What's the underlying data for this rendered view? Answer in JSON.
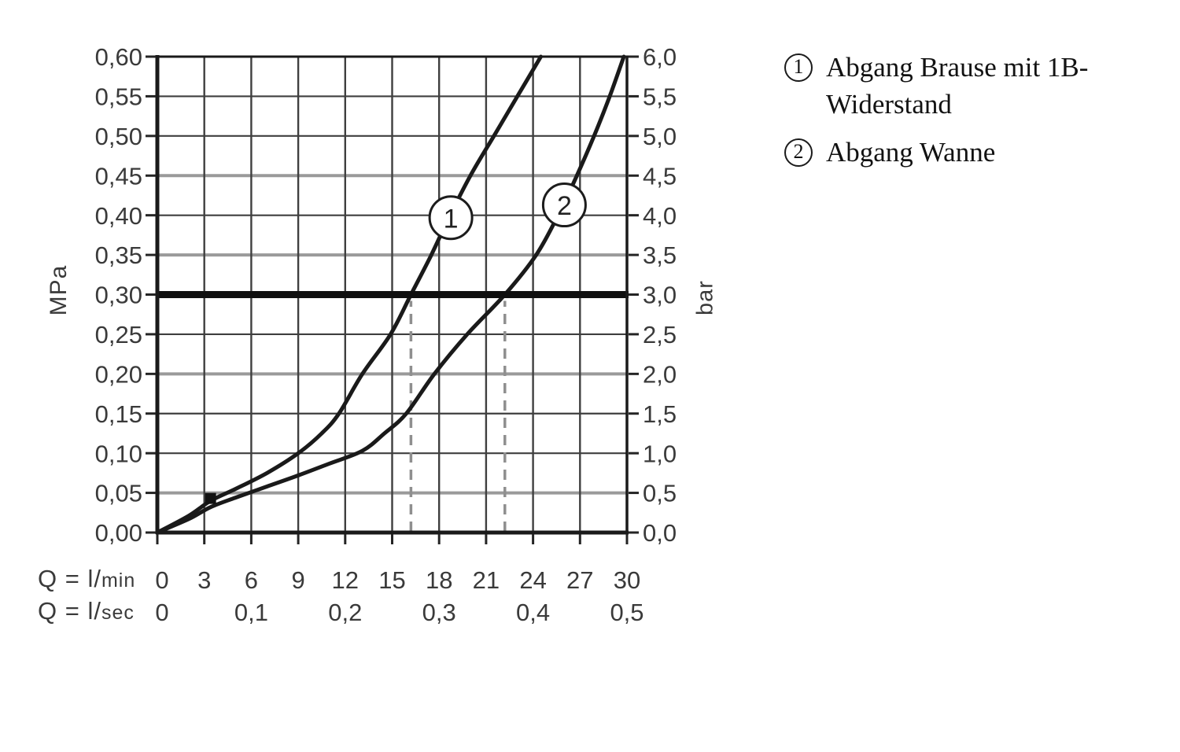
{
  "chart_data": {
    "type": "line",
    "title": "",
    "x": {
      "label_lmin_prefix": "Q = l/",
      "label_lmin_unit": "min",
      "label_lsec_prefix": "Q = l/",
      "label_lsec_unit": "sec",
      "range_lmin": [
        0,
        30
      ],
      "ticks_lmin": [
        "0",
        "3",
        "6",
        "9",
        "12",
        "15",
        "18",
        "21",
        "24",
        "27",
        "30"
      ],
      "ticks_lsec": [
        {
          "label": "0",
          "lmin": 0
        },
        {
          "label": "0,1",
          "lmin": 6
        },
        {
          "label": "0,2",
          "lmin": 12
        },
        {
          "label": "0,3",
          "lmin": 18
        },
        {
          "label": "0,4",
          "lmin": 24
        },
        {
          "label": "0,5",
          "lmin": 30
        }
      ]
    },
    "y_left": {
      "unit": "MPa",
      "range": [
        0,
        0.6
      ],
      "ticks": [
        "0,00",
        "0,05",
        "0,10",
        "0,15",
        "0,20",
        "0,25",
        "0,30",
        "0,35",
        "0,40",
        "0,45",
        "0,50",
        "0,55",
        "0,60"
      ]
    },
    "y_right": {
      "unit": "bar",
      "range": [
        0,
        6
      ],
      "ticks": [
        "0,0",
        "0,5",
        "1,0",
        "1,5",
        "2,0",
        "2,5",
        "3,0",
        "3,5",
        "4,0",
        "4,5",
        "5,0",
        "5,5",
        "6,0"
      ]
    },
    "series": [
      {
        "id": "1",
        "name": "Abgang Brause mit 1B-Widerstand",
        "points_lmin_mpa": [
          [
            0,
            0
          ],
          [
            2,
            0.021
          ],
          [
            3.4,
            0.04
          ],
          [
            5,
            0.055
          ],
          [
            7,
            0.075
          ],
          [
            9,
            0.1
          ],
          [
            10.5,
            0.125
          ],
          [
            11.6,
            0.15
          ],
          [
            13.1,
            0.2
          ],
          [
            14.9,
            0.25
          ],
          [
            16.2,
            0.3
          ],
          [
            17.5,
            0.35
          ],
          [
            18.7,
            0.4
          ],
          [
            20,
            0.45
          ],
          [
            21.5,
            0.5
          ],
          [
            23,
            0.55
          ],
          [
            24.5,
            0.6
          ]
        ],
        "badge_lmin_mpa": [
          18.75,
          0.397
        ]
      },
      {
        "id": "2",
        "name": "Abgang Wanne",
        "points_lmin_mpa": [
          [
            0,
            0
          ],
          [
            2,
            0.017
          ],
          [
            3.4,
            0.032
          ],
          [
            5,
            0.044
          ],
          [
            7,
            0.058
          ],
          [
            9,
            0.072
          ],
          [
            11,
            0.087
          ],
          [
            13.1,
            0.103
          ],
          [
            14.5,
            0.125
          ],
          [
            15.9,
            0.15
          ],
          [
            17.7,
            0.2
          ],
          [
            19.8,
            0.25
          ],
          [
            22.2,
            0.3
          ],
          [
            24.2,
            0.35
          ],
          [
            25.6,
            0.4
          ],
          [
            26.8,
            0.45
          ],
          [
            27.9,
            0.5
          ],
          [
            28.9,
            0.55
          ],
          [
            29.8,
            0.6
          ]
        ],
        "badge_lmin_mpa": [
          26.0,
          0.413
        ]
      }
    ],
    "reference_line_mpa": 0.3,
    "dashed_guides_lmin": [
      16.2,
      22.2
    ],
    "marker_square_lmin_mpa": [
      3.4,
      0.043
    ],
    "gray_gridlines_mpa": [
      0.05,
      0.2,
      0.35,
      0.45
    ],
    "grid_on": true,
    "colors": {
      "ink": "#1a1a1a",
      "grid": "#3f3f3f",
      "grid_gray": "#9a9a9a",
      "label": "#3a3a3a",
      "dashed": "#8f8f8f",
      "badge_fill": "#ffffff"
    }
  },
  "legend": {
    "items": [
      {
        "num": "1",
        "line1": "Abgang Brause mit 1B-",
        "line2": "Widerstand"
      },
      {
        "num": "2",
        "line1": "Abgang Wanne"
      }
    ]
  }
}
